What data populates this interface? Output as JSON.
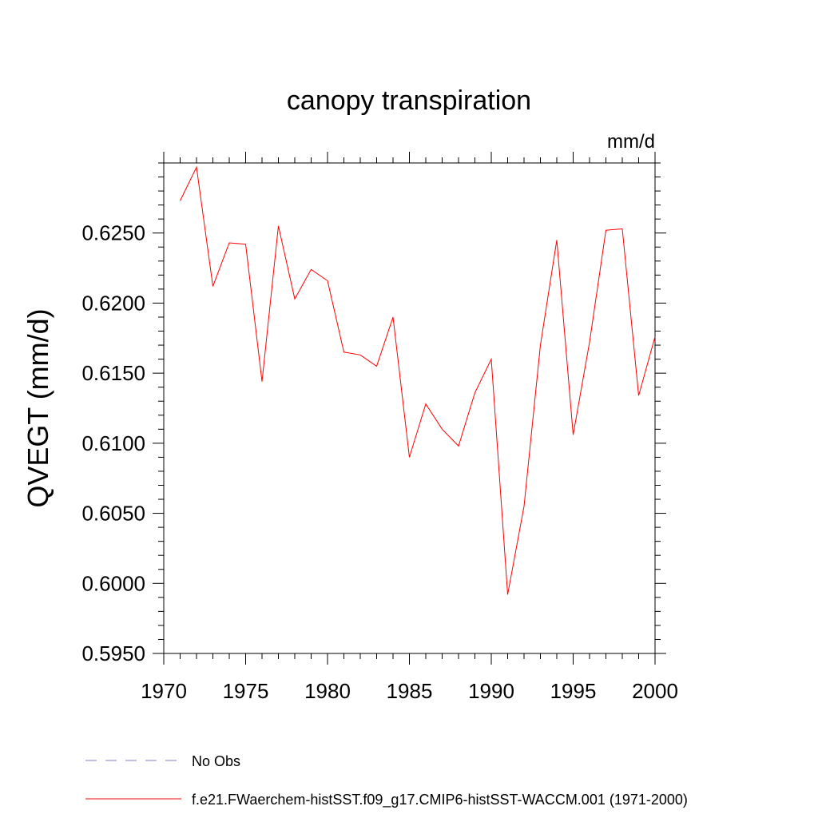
{
  "chart_data": {
    "type": "line",
    "title": "canopy transpiration",
    "units": "mm/d",
    "xlabel": "",
    "ylabel": "QVEGT  (mm/d)",
    "xlim": [
      1970,
      2000
    ],
    "ylim": [
      0.595,
      0.63
    ],
    "x_ticks": [
      "1970",
      "1975",
      "1980",
      "1985",
      "1990",
      "1995",
      "2000"
    ],
    "y_ticks": [
      "0.5950",
      "0.6000",
      "0.6050",
      "0.6100",
      "0.6150",
      "0.6200",
      "0.6250"
    ],
    "grid": false,
    "legend_position": "bottom",
    "series": [
      {
        "name": "f.e21.FWaerchem-histSST.f09_g17.CMIP6-histSST-WACCM.001 (1971-2000)",
        "color": "#ff0000",
        "style": "solid",
        "x": [
          1971,
          1972,
          1973,
          1974,
          1975,
          1976,
          1977,
          1978,
          1979,
          1980,
          1981,
          1982,
          1983,
          1984,
          1985,
          1986,
          1987,
          1988,
          1989,
          1990,
          1991,
          1992,
          1993,
          1994,
          1995,
          1996,
          1997,
          1998,
          1999,
          2000
        ],
        "y": [
          0.6273,
          0.6297,
          0.6212,
          0.6243,
          0.6242,
          0.6144,
          0.6255,
          0.6203,
          0.6224,
          0.6216,
          0.6165,
          0.6163,
          0.6155,
          0.619,
          0.609,
          0.6128,
          0.611,
          0.6098,
          0.6136,
          0.616,
          0.5992,
          0.6055,
          0.617,
          0.6245,
          0.6106,
          0.6172,
          0.6252,
          0.6253,
          0.6134,
          0.6176
        ]
      }
    ],
    "legend": [
      {
        "label": "No Obs",
        "color": "#8080c0",
        "style": "dashed"
      },
      {
        "label": "f.e21.FWaerchem-histSST.f09_g17.CMIP6-histSST-WACCM.001 (1971-2000)",
        "color": "#ff0000",
        "style": "solid"
      }
    ]
  }
}
